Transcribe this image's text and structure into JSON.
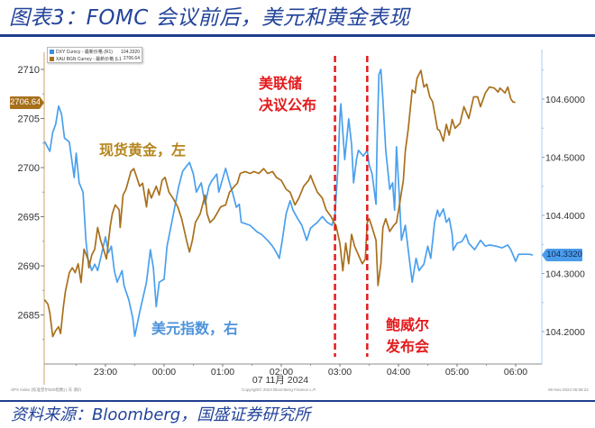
{
  "title": "图表3：FOMC 会议前后，美元和黄金表现",
  "source": "资料来源：Bloomberg，国盛证券研究所",
  "legend": [
    {
      "swatch_color": "#3d8fe0",
      "label": "DXY Curncy - 最新价格 (R1)",
      "value": "104.3320"
    },
    {
      "swatch_color": "#a8701c",
      "label": "XAU BGN Curncy - 最新价格 (L1)",
      "value": "2706.64"
    }
  ],
  "tags": {
    "left_last": "2706.64",
    "right_last": "104.3320"
  },
  "annotations": {
    "fomc": [
      "美联储",
      "决议公布"
    ],
    "powell": [
      "鲍威尔",
      "发布会"
    ],
    "gold": "现货黄金，左",
    "dxy": "美元指数，右"
  },
  "footer": {
    "left": "SPX Index (标准普尔500指数) | 天 调价",
    "center": "Copyright© 2024 Bloomberg Finance L.P.",
    "right": "06-Nov-2024 06:58:24"
  },
  "colors": {
    "title": "#23449a",
    "dxy_line": "#4aa0ee",
    "gold_line": "#a8701c",
    "event_line": "#e31a1c",
    "left_axis": "#c9a46a",
    "right_axis": "#a8cff5"
  },
  "chart_data": {
    "type": "line",
    "title": "FOMC 会议前后，美元和黄金表现",
    "x_origin": "23:00",
    "x_unit": "minutes",
    "xlabel": "07 11月 2024",
    "x_axis": {
      "label": "07 11月 2024",
      "ticks": [
        {
          "label": "23:00",
          "minute": 0
        },
        {
          "label": "00:00",
          "minute": 60
        },
        {
          "label": "01:00",
          "minute": 120
        },
        {
          "label": "02:00",
          "minute": 180
        },
        {
          "label": "03:00",
          "minute": 240
        },
        {
          "label": "04:00",
          "minute": 300
        },
        {
          "label": "05:00",
          "minute": 360
        },
        {
          "label": "06:00",
          "minute": 420
        }
      ],
      "range": [
        -63,
        447
      ]
    },
    "left_axis": {
      "label": "XAU BGN Curncy (L1)",
      "ticks": [
        2685,
        2690,
        2695,
        2700,
        2705,
        2710
      ],
      "range": [
        2681,
        2712
      ]
    },
    "right_axis": {
      "label": "DXY Curncy (R1)",
      "ticks": [
        "104.2000",
        "104.3000",
        "104.4000",
        "104.5000",
        "104.6000"
      ],
      "range": [
        104.16,
        104.68
      ]
    },
    "grid": false,
    "legend_position": "top-left",
    "events": [
      {
        "id": "fomc",
        "minute": 235,
        "label": "美联储决议公布"
      },
      {
        "id": "powell",
        "minute": 268,
        "label": "鲍威尔发布会"
      }
    ],
    "series": [
      {
        "id": "dxy",
        "name": "DXY Curncy - 最新价格 (R1)",
        "axis": "right",
        "color": "#4aa0ee",
        "last": 104.332,
        "points": [
          [
            -62,
            104.526
          ],
          [
            -57,
            104.51
          ],
          [
            -54,
            104.543
          ],
          [
            -51,
            104.557
          ],
          [
            -48,
            104.588
          ],
          [
            -45,
            104.574
          ],
          [
            -42,
            104.533
          ],
          [
            -37,
            104.526
          ],
          [
            -32,
            104.465
          ],
          [
            -30,
            104.507
          ],
          [
            -27,
            104.456
          ],
          [
            -23,
            104.44
          ],
          [
            -20,
            104.357
          ],
          [
            -18,
            104.326
          ],
          [
            -14,
            104.305
          ],
          [
            -11,
            104.316
          ],
          [
            -8,
            104.305
          ],
          [
            -5,
            104.326
          ],
          [
            0,
            104.363
          ],
          [
            3,
            104.336
          ],
          [
            6,
            104.347
          ],
          [
            9,
            104.305
          ],
          [
            12,
            104.285
          ],
          [
            17,
            104.305
          ],
          [
            19,
            104.279
          ],
          [
            24,
            104.254
          ],
          [
            28,
            104.223
          ],
          [
            30,
            104.192
          ],
          [
            35,
            104.233
          ],
          [
            42,
            104.285
          ],
          [
            46,
            104.341
          ],
          [
            49,
            104.31
          ],
          [
            52,
            104.243
          ],
          [
            55,
            104.285
          ],
          [
            60,
            104.29
          ],
          [
            63,
            104.347
          ],
          [
            66,
            104.372
          ],
          [
            69,
            104.398
          ],
          [
            75,
            104.45
          ],
          [
            79,
            104.476
          ],
          [
            86,
            104.491
          ],
          [
            90,
            104.471
          ],
          [
            93,
            104.44
          ],
          [
            98,
            104.456
          ],
          [
            102,
            104.419
          ],
          [
            106,
            104.45
          ],
          [
            109,
            104.46
          ],
          [
            114,
            104.471
          ],
          [
            116,
            104.44
          ],
          [
            123,
            104.481
          ],
          [
            127,
            104.456
          ],
          [
            130,
            104.44
          ],
          [
            134,
            104.414
          ],
          [
            137,
            104.419
          ],
          [
            139,
            104.388
          ],
          [
            148,
            104.383
          ],
          [
            155,
            104.372
          ],
          [
            160,
            104.367
          ],
          [
            166,
            104.357
          ],
          [
            171,
            104.347
          ],
          [
            175,
            104.336
          ],
          [
            178,
            104.326
          ],
          [
            181,
            104.357
          ],
          [
            185,
            104.403
          ],
          [
            189,
            104.425
          ],
          [
            192,
            104.409
          ],
          [
            197,
            104.394
          ],
          [
            201,
            104.383
          ],
          [
            206,
            104.357
          ],
          [
            210,
            104.378
          ],
          [
            217,
            104.388
          ],
          [
            222,
            104.398
          ],
          [
            227,
            104.388
          ],
          [
            232,
            104.383
          ],
          [
            235,
            104.402
          ],
          [
            238,
            104.481
          ],
          [
            240,
            104.569
          ],
          [
            241,
            104.592
          ],
          [
            245,
            104.496
          ],
          [
            249,
            104.566
          ],
          [
            252,
            104.522
          ],
          [
            254,
            104.456
          ],
          [
            257,
            104.496
          ],
          [
            259,
            104.512
          ],
          [
            264,
            104.502
          ],
          [
            268,
            104.512
          ],
          [
            270,
            104.487
          ],
          [
            273,
            104.471
          ],
          [
            277,
            104.419
          ],
          [
            278,
            104.522
          ],
          [
            280,
            104.642
          ],
          [
            282,
            104.651
          ],
          [
            284,
            104.6
          ],
          [
            287,
            104.512
          ],
          [
            291,
            104.445
          ],
          [
            294,
            104.456
          ],
          [
            296,
            104.409
          ],
          [
            298,
            104.518
          ],
          [
            301,
            104.429
          ],
          [
            303,
            104.357
          ],
          [
            307,
            104.383
          ],
          [
            310,
            104.341
          ],
          [
            314,
            104.285
          ],
          [
            318,
            104.326
          ],
          [
            321,
            104.305
          ],
          [
            326,
            104.316
          ],
          [
            330,
            104.347
          ],
          [
            333,
            104.326
          ],
          [
            337,
            104.388
          ],
          [
            340,
            104.409
          ],
          [
            342,
            104.398
          ],
          [
            346,
            104.411
          ],
          [
            349,
            104.388
          ],
          [
            352,
            104.395
          ],
          [
            355,
            104.367
          ],
          [
            356,
            104.34
          ],
          [
            360,
            104.352
          ],
          [
            365,
            104.355
          ],
          [
            369,
            104.367
          ],
          [
            372,
            104.352
          ],
          [
            378,
            104.341
          ],
          [
            384,
            104.357
          ],
          [
            389,
            104.347
          ],
          [
            393,
            104.349
          ],
          [
            400,
            104.347
          ],
          [
            406,
            104.344
          ],
          [
            412,
            104.349
          ],
          [
            415,
            104.341
          ],
          [
            420,
            104.321
          ],
          [
            423,
            104.333
          ],
          [
            427,
            104.333
          ],
          [
            434,
            104.333
          ],
          [
            437,
            104.332
          ]
        ]
      },
      {
        "id": "gold",
        "name": "XAU BGN Curncy - 最新价格 (L1)",
        "axis": "left",
        "color": "#a8701c",
        "last": 2706.64,
        "points": [
          [
            -62,
            2686.5
          ],
          [
            -59,
            2686.1
          ],
          [
            -57,
            2685.2
          ],
          [
            -54,
            2682.8
          ],
          [
            -51,
            2683.4
          ],
          [
            -48,
            2683.8
          ],
          [
            -46,
            2683.1
          ],
          [
            -43,
            2685.9
          ],
          [
            -41,
            2687.4
          ],
          [
            -37,
            2689.3
          ],
          [
            -34,
            2689.8
          ],
          [
            -31,
            2689.3
          ],
          [
            -28,
            2690.2
          ],
          [
            -25,
            2688.3
          ],
          [
            -22,
            2691.7
          ],
          [
            -18,
            2690.7
          ],
          [
            -17,
            2689.8
          ],
          [
            -14,
            2691.1
          ],
          [
            -11,
            2691.7
          ],
          [
            -8,
            2693.9
          ],
          [
            -5,
            2692.6
          ],
          [
            -2,
            2691.7
          ],
          [
            1,
            2690.7
          ],
          [
            5,
            2694.1
          ],
          [
            7,
            2695.3
          ],
          [
            10,
            2696.2
          ],
          [
            14,
            2695.7
          ],
          [
            15,
            2693.9
          ],
          [
            18,
            2697.2
          ],
          [
            21,
            2697.8
          ],
          [
            26,
            2699.6
          ],
          [
            29,
            2699.9
          ],
          [
            32,
            2699.0
          ],
          [
            35,
            2698.1
          ],
          [
            38,
            2698.4
          ],
          [
            42,
            2696.0
          ],
          [
            44,
            2697.8
          ],
          [
            47,
            2696.9
          ],
          [
            52,
            2698.1
          ],
          [
            55,
            2697.2
          ],
          [
            58,
            2698.7
          ],
          [
            61,
            2699.0
          ],
          [
            65,
            2697.5
          ],
          [
            69,
            2696.9
          ],
          [
            74,
            2696.0
          ],
          [
            78,
            2694.8
          ],
          [
            83,
            2692.6
          ],
          [
            86,
            2691.4
          ],
          [
            89,
            2692.6
          ],
          [
            92,
            2694.4
          ],
          [
            97,
            2695.3
          ],
          [
            102,
            2697.2
          ],
          [
            104,
            2695.3
          ],
          [
            107,
            2694.4
          ],
          [
            111,
            2694.8
          ],
          [
            114,
            2695.3
          ],
          [
            118,
            2696.0
          ],
          [
            123,
            2696.2
          ],
          [
            127,
            2697.5
          ],
          [
            132,
            2698.1
          ],
          [
            135,
            2698.4
          ],
          [
            138,
            2699.4
          ],
          [
            143,
            2699.6
          ],
          [
            148,
            2699.4
          ],
          [
            152,
            2699.6
          ],
          [
            157,
            2699.4
          ],
          [
            162,
            2699.9
          ],
          [
            166,
            2699.4
          ],
          [
            171,
            2699.6
          ],
          [
            175,
            2699.0
          ],
          [
            180,
            2698.7
          ],
          [
            185,
            2697.8
          ],
          [
            189,
            2697.5
          ],
          [
            194,
            2696.2
          ],
          [
            198,
            2696.9
          ],
          [
            203,
            2698.1
          ],
          [
            208,
            2698.7
          ],
          [
            210,
            2699.2
          ],
          [
            213,
            2698.4
          ],
          [
            217,
            2697.5
          ],
          [
            222,
            2696.9
          ],
          [
            226,
            2695.7
          ],
          [
            231,
            2695.0
          ],
          [
            234,
            2694.4
          ],
          [
            236,
            2694.1
          ],
          [
            240,
            2692.3
          ],
          [
            243,
            2689.5
          ],
          [
            246,
            2692.3
          ],
          [
            249,
            2690.2
          ],
          [
            252,
            2693.2
          ],
          [
            255,
            2692.0
          ],
          [
            259,
            2691.1
          ],
          [
            263,
            2690.2
          ],
          [
            266,
            2690.7
          ],
          [
            268,
            2694.4
          ],
          [
            270,
            2694.8
          ],
          [
            273,
            2693.9
          ],
          [
            277,
            2692.6
          ],
          [
            279,
            2688.0
          ],
          [
            282,
            2690.2
          ],
          [
            284,
            2693.9
          ],
          [
            287,
            2694.8
          ],
          [
            291,
            2693.5
          ],
          [
            295,
            2694.1
          ],
          [
            298,
            2694.4
          ],
          [
            301,
            2696.2
          ],
          [
            305,
            2698.7
          ],
          [
            307,
            2701.7
          ],
          [
            310,
            2703.9
          ],
          [
            314,
            2707.9
          ],
          [
            317,
            2707.6
          ],
          [
            319,
            2709.1
          ],
          [
            323,
            2709.9
          ],
          [
            326,
            2708.2
          ],
          [
            329,
            2708.5
          ],
          [
            332,
            2707.2
          ],
          [
            335,
            2706.7
          ],
          [
            340,
            2703.9
          ],
          [
            342,
            2703.8
          ],
          [
            346,
            2702.7
          ],
          [
            349,
            2704.4
          ],
          [
            352,
            2703.3
          ],
          [
            355,
            2704.9
          ],
          [
            358,
            2704.0
          ],
          [
            363,
            2704.5
          ],
          [
            367,
            2706.2
          ],
          [
            372,
            2705.0
          ],
          [
            377,
            2707.2
          ],
          [
            381,
            2707.2
          ],
          [
            384,
            2706.2
          ],
          [
            389,
            2707.6
          ],
          [
            393,
            2708.2
          ],
          [
            398,
            2708.1
          ],
          [
            402,
            2707.7
          ],
          [
            404,
            2708.1
          ],
          [
            409,
            2707.6
          ],
          [
            412,
            2708.2
          ],
          [
            415,
            2707.0
          ],
          [
            417,
            2706.7
          ],
          [
            419,
            2706.64
          ]
        ]
      }
    ]
  }
}
